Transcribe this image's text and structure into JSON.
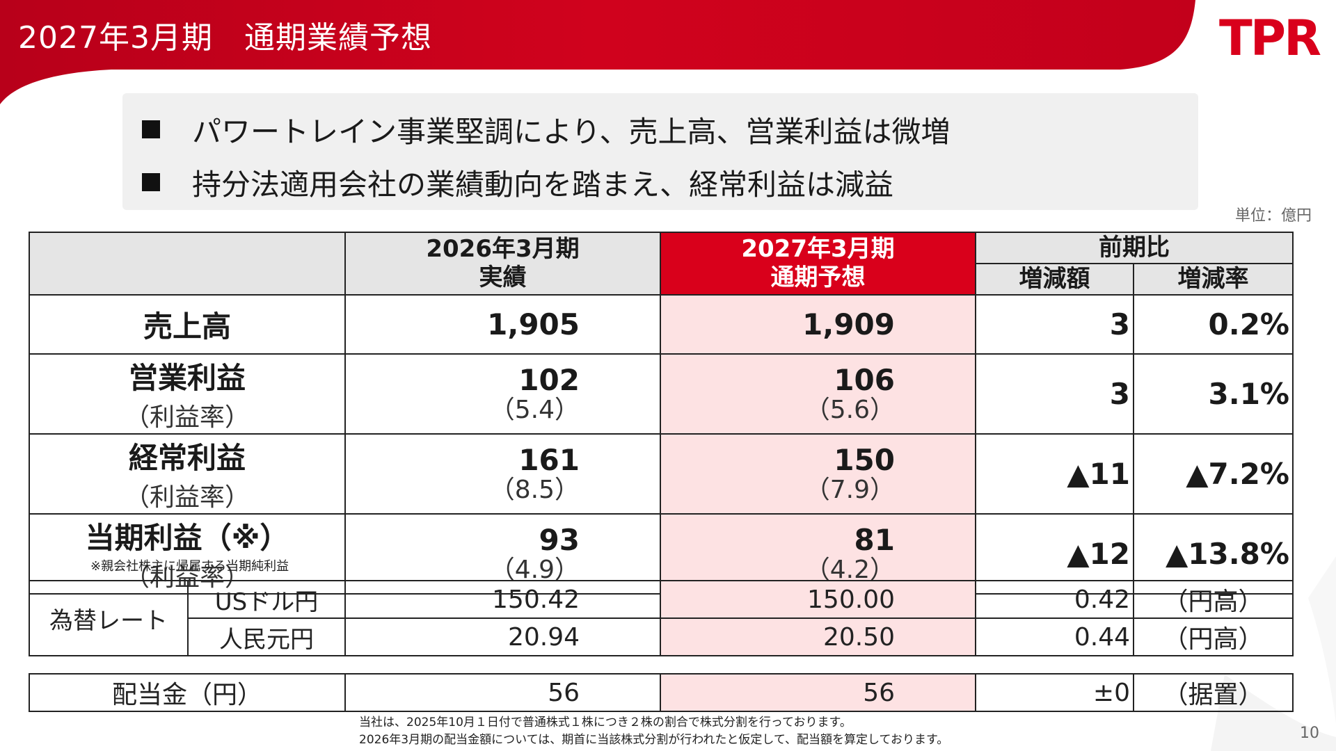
{
  "header": {
    "title": "2027年3月期　通期業績予想",
    "logo_text": "TPR",
    "accent_color": "#d9001b"
  },
  "bullets": [
    "パワートレイン事業堅調により、売上高、営業利益は微増",
    "持分法適用会社の業績動向を踏まえ、経常利益は減益"
  ],
  "unit": "単位：億円",
  "table": {
    "headers": {
      "actual_line1": "2026年3月期",
      "actual_line2": "実績",
      "forecast_line1": "2027年3月期",
      "forecast_line2": "通期予想",
      "comparison": "前期比",
      "change_amount": "増減額",
      "change_rate": "増減率"
    },
    "rows": [
      {
        "label": "売上高",
        "actual": "1,905",
        "forecast": "1,909",
        "change": "3",
        "rate": "0.2%"
      },
      {
        "label": "営業利益",
        "sublabel": "（利益率）",
        "actual": "102",
        "actual_sub": "（5.4）",
        "forecast": "106",
        "forecast_sub": "（5.6）",
        "change": "3",
        "rate": "3.1%"
      },
      {
        "label": "経常利益",
        "sublabel": "（利益率）",
        "actual": "161",
        "actual_sub": "（8.5）",
        "forecast": "150",
        "forecast_sub": "（7.9）",
        "change": "▲11",
        "rate": "▲7.2%"
      },
      {
        "label": "当期利益（※）",
        "sublabel": "（利益率）",
        "actual": "93",
        "actual_sub": "（4.9）",
        "forecast": "81",
        "forecast_sub": "（4.2）",
        "change": "▲12",
        "rate": "▲13.8%"
      }
    ],
    "note": "※親会社株主に帰属する当期純利益"
  },
  "fx": {
    "label": "為替レート",
    "rows": [
      {
        "currency": "USドル円",
        "actual": "150.42",
        "forecast": "150.00",
        "change": "0.42",
        "note": "（円高）"
      },
      {
        "currency": "人民元円",
        "actual": "20.94",
        "forecast": "20.50",
        "change": "0.44",
        "note": "（円高）"
      }
    ]
  },
  "dividend": {
    "label": "配当金（円）",
    "actual": "56",
    "forecast": "56",
    "change": "±0",
    "note": "（据置）"
  },
  "footnote": {
    "line1": "当社は、2025年10月１日付で普通株式１株につき２株の割合で株式分割を行っております。",
    "line2": "2026年3月期の配当金額については、期首に当該株式分割が行われたと仮定して、配当額を算定しております。"
  },
  "page_number": "10"
}
